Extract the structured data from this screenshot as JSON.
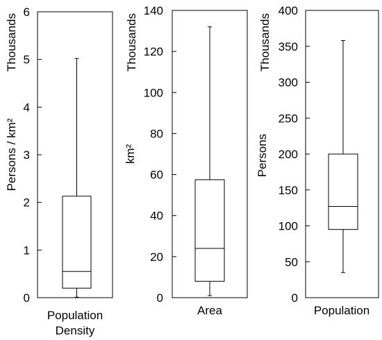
{
  "chart_data": [
    {
      "type": "box",
      "category": "Population Density",
      "category_lines": [
        "Population",
        "Density"
      ],
      "ylabel": "Persons / km²",
      "unit_label": "Thousands",
      "ylim": [
        0,
        6
      ],
      "yticks": [
        0,
        1,
        2,
        3,
        4,
        5,
        6
      ],
      "tick_labels": [
        "0",
        "1",
        "2",
        "3",
        "4",
        "5",
        "6"
      ],
      "box": {
        "min": 0.01,
        "q1": 0.2,
        "median": 0.55,
        "q3": 2.13,
        "max": 5.02
      }
    },
    {
      "type": "box",
      "category": "Area",
      "category_lines": [
        "Area"
      ],
      "ylabel": "km²",
      "unit_label": "Thousands",
      "ylim": [
        0,
        140
      ],
      "yticks": [
        0,
        20,
        40,
        60,
        80,
        100,
        120,
        140
      ],
      "tick_labels": [
        "0",
        "20",
        "40",
        "60",
        "80",
        "100",
        "120",
        "140"
      ],
      "box": {
        "min": 1,
        "q1": 8,
        "median": 24,
        "q3": 57.5,
        "max": 132
      }
    },
    {
      "type": "box",
      "category": "Population",
      "category_lines": [
        "Population"
      ],
      "ylabel": "Persons",
      "unit_label": "Thousands",
      "ylim": [
        0,
        400
      ],
      "yticks": [
        0,
        50,
        100,
        150,
        200,
        250,
        300,
        350,
        400
      ],
      "tick_labels": [
        "0",
        "50",
        "100",
        "150",
        "200",
        "250",
        "300",
        "350",
        "400"
      ],
      "box": {
        "min": 35,
        "q1": 95,
        "median": 127,
        "q3": 200,
        "max": 358
      }
    }
  ]
}
